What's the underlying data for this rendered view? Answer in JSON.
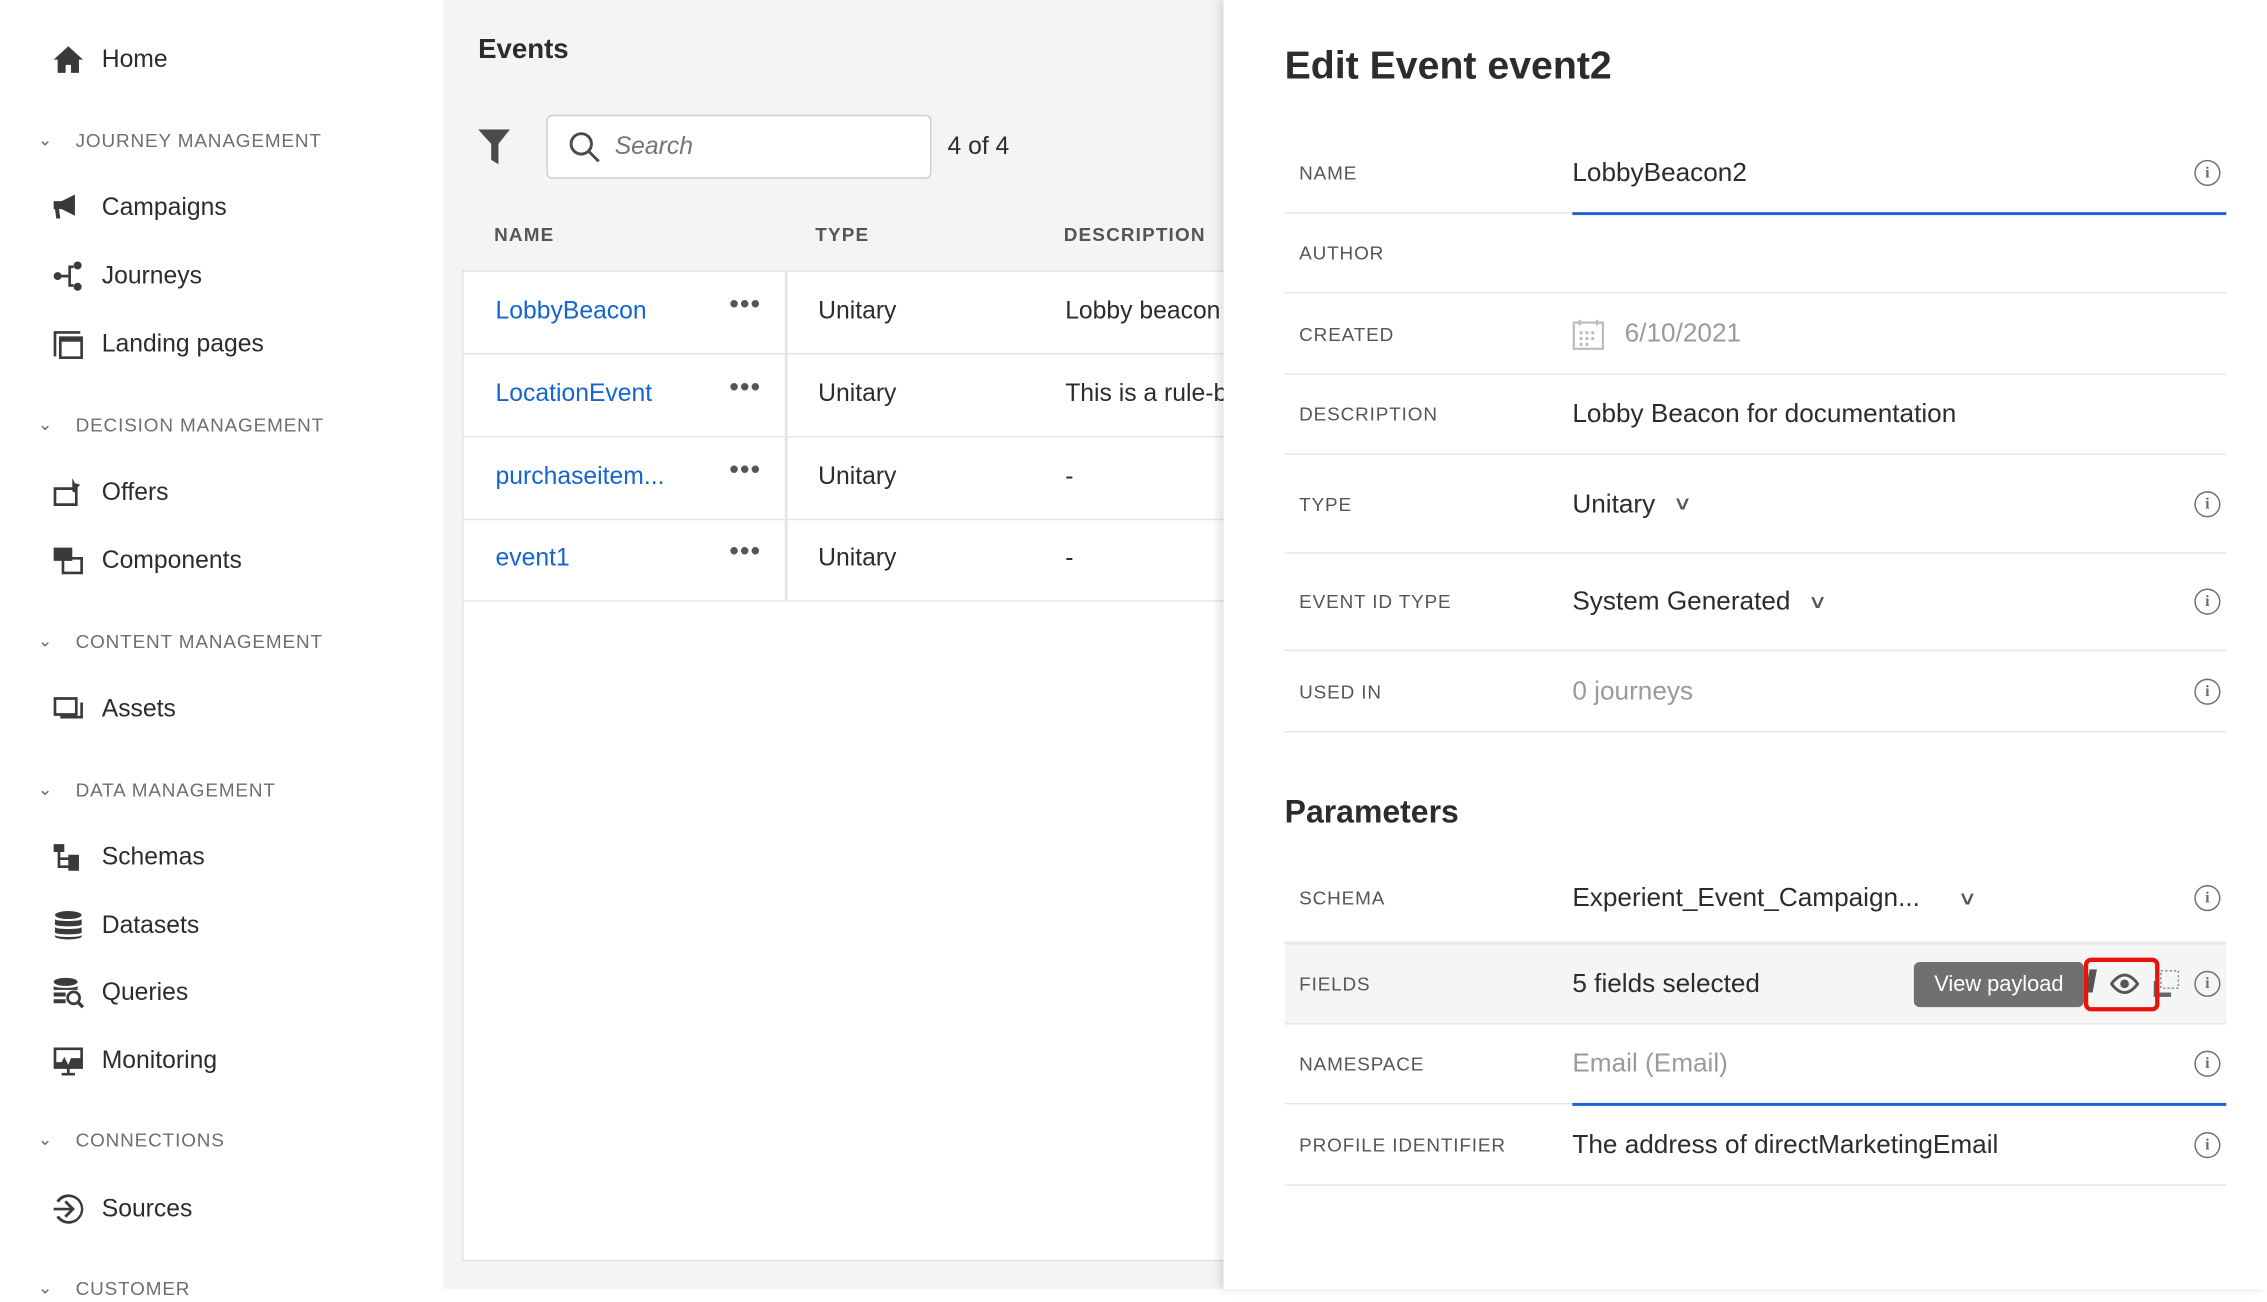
{
  "sidebar": {
    "home": "Home",
    "sections": [
      {
        "label": "JOURNEY MANAGEMENT",
        "items": [
          "Campaigns",
          "Journeys",
          "Landing pages"
        ]
      },
      {
        "label": "DECISION MANAGEMENT",
        "items": [
          "Offers",
          "Components"
        ]
      },
      {
        "label": "CONTENT MANAGEMENT",
        "items": [
          "Assets"
        ]
      },
      {
        "label": "DATA MANAGEMENT",
        "items": [
          "Schemas",
          "Datasets",
          "Queries",
          "Monitoring"
        ]
      },
      {
        "label": "CONNECTIONS",
        "items": [
          "Sources"
        ]
      },
      {
        "label": "CUSTOMER",
        "items": []
      }
    ]
  },
  "events": {
    "title": "Events",
    "search_placeholder": "Search",
    "count": "4 of 4",
    "columns": [
      "NAME",
      "TYPE",
      "DESCRIPTION"
    ],
    "rows": [
      {
        "name": "LobbyBeacon",
        "type": "Unitary",
        "description": "Lobby beacon"
      },
      {
        "name": "LocationEvent",
        "type": "Unitary",
        "description": "This is a rule-b"
      },
      {
        "name": "purchaseitem...",
        "type": "Unitary",
        "description": "-"
      },
      {
        "name": "event1",
        "type": "Unitary",
        "description": "-"
      }
    ]
  },
  "edit": {
    "title": "Edit Event event2",
    "fields": {
      "name": {
        "label": "NAME",
        "value": "LobbyBeacon2"
      },
      "author": {
        "label": "AUTHOR",
        "value": ""
      },
      "created": {
        "label": "CREATED",
        "value": "6/10/2021"
      },
      "description": {
        "label": "DESCRIPTION",
        "value": "Lobby Beacon for documentation"
      },
      "type": {
        "label": "TYPE",
        "value": "Unitary"
      },
      "event_id_type": {
        "label": "EVENT ID TYPE",
        "value": "System Generated"
      },
      "used_in": {
        "label": "USED IN",
        "value": "0 journeys"
      }
    },
    "parameters_title": "Parameters",
    "params": {
      "schema": {
        "label": "SCHEMA",
        "value": "Experient_Event_Campaign..."
      },
      "fields": {
        "label": "FIELDS",
        "value": "5 fields selected",
        "tooltip": "View payload"
      },
      "namespace": {
        "label": "NAMESPACE",
        "placeholder": "Email (Email)"
      },
      "profile_identifier": {
        "label": "PROFILE IDENTIFIER",
        "value": "The address of directMarketingEmail"
      }
    },
    "info_glyph": "i"
  },
  "colors": {
    "link": "#1464d2",
    "highlight": "#e8140c",
    "tooltip": "#707070"
  }
}
